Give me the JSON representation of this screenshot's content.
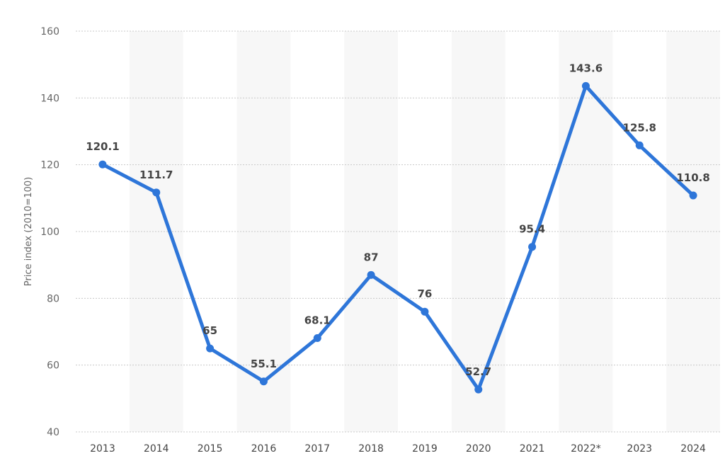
{
  "chart_data": {
    "type": "line",
    "title": "",
    "xlabel": "",
    "ylabel": "Price index (2010=100)",
    "categories": [
      "2013",
      "2014",
      "2015",
      "2016",
      "2017",
      "2018",
      "2019",
      "2020",
      "2021",
      "2022*",
      "2023",
      "2024"
    ],
    "series": [
      {
        "values": [
          120.1,
          111.7,
          65,
          55.1,
          68.1,
          87,
          76,
          52.7,
          95.4,
          143.6,
          125.8,
          110.8
        ],
        "labels": [
          "120.1",
          "111.7",
          "65",
          "55.1",
          "68.1",
          "87",
          "76",
          "52.7",
          "95.4",
          "143.6",
          "125.8",
          "110.8"
        ],
        "color": "#2e76d9"
      }
    ],
    "ylim": [
      40,
      160
    ],
    "yticks": [
      "40",
      "60",
      "80",
      "100",
      "120",
      "140",
      "160"
    ],
    "grid": true,
    "alternating_column_shading": true,
    "shading_color": "#f7f7f7",
    "grid_color": "#c8c8c8"
  }
}
